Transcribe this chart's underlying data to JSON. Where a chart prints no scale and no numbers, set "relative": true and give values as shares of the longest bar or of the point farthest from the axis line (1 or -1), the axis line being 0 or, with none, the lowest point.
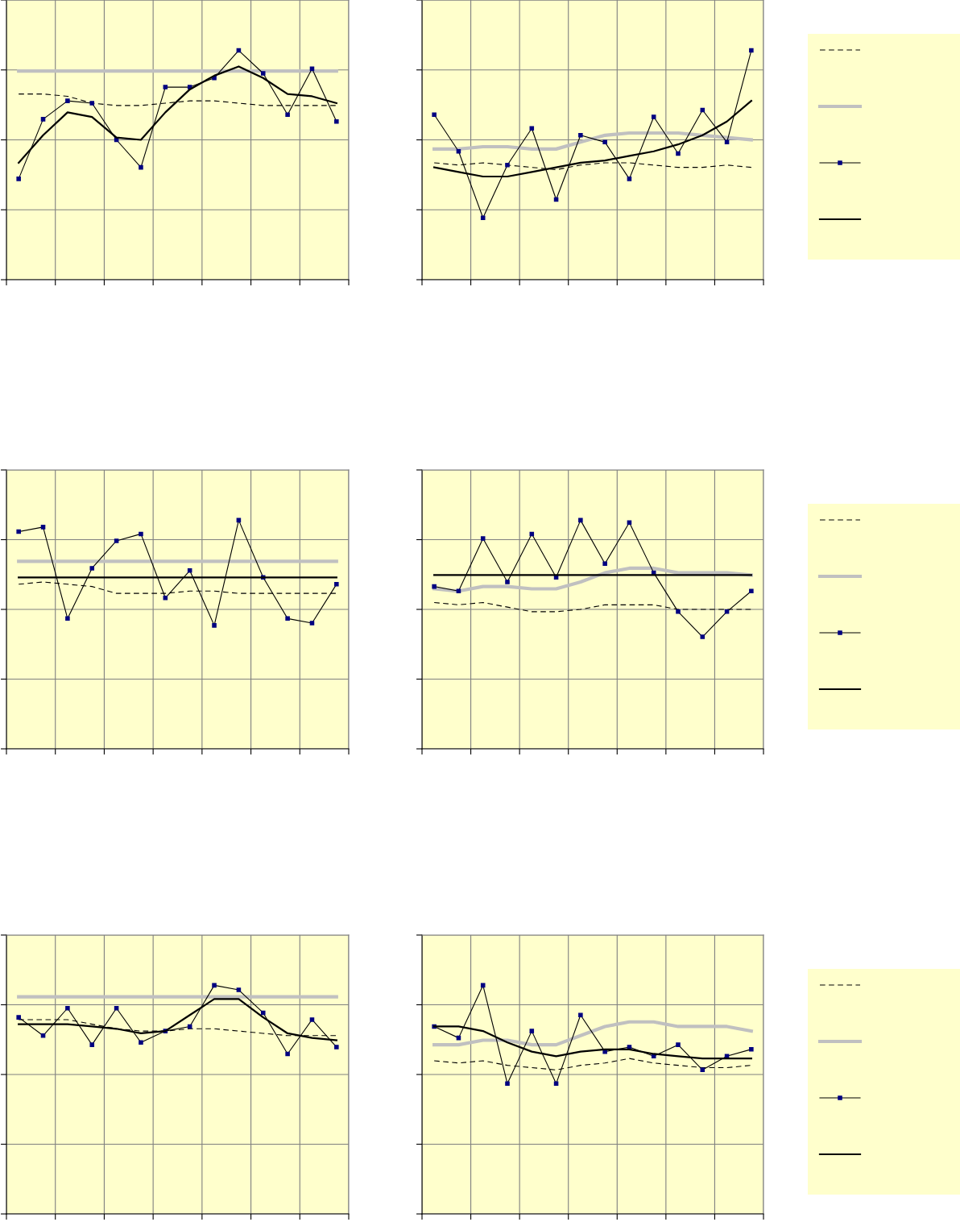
{
  "chart_data": [
    {
      "type": "line",
      "categories": [
        null,
        null,
        null,
        null,
        null,
        null,
        null,
        null,
        null,
        null,
        null,
        null,
        null,
        null
      ],
      "relative": true,
      "grid": true,
      "tick_labels": false,
      "series": [
        {
          "color": "#000000",
          "line_style": "dashed",
          "marker": "none",
          "values": [
            0.81,
            0.81,
            0.8,
            0.77,
            0.76,
            0.76,
            0.77,
            0.78,
            0.78,
            0.77,
            0.76,
            0.76,
            0.76,
            0.76
          ]
        },
        {
          "color": "#c0c0c0",
          "line_style": "solid",
          "marker": "none",
          "values": [
            0.91,
            0.91,
            0.91,
            0.91,
            0.91,
            0.91,
            0.91,
            0.91,
            0.91,
            0.91,
            0.91,
            0.91,
            0.91,
            0.91
          ]
        },
        {
          "color": "#000000",
          "line_style": "solid",
          "marker": "square",
          "values": [
            0.44,
            0.7,
            0.78,
            0.77,
            0.61,
            0.49,
            0.84,
            0.84,
            0.88,
            1.0,
            0.9,
            0.72,
            0.92,
            0.69
          ]
        },
        {
          "color": "#000000",
          "line_style": "solid",
          "marker": "none",
          "values": [
            0.51,
            0.63,
            0.73,
            0.71,
            0.62,
            0.61,
            0.73,
            0.83,
            0.89,
            0.93,
            0.88,
            0.81,
            0.8,
            0.77
          ]
        }
      ]
    },
    {
      "type": "line",
      "categories": [
        null,
        null,
        null,
        null,
        null,
        null,
        null,
        null,
        null,
        null,
        null,
        null,
        null,
        null
      ],
      "relative": true,
      "grid": true,
      "tick_labels": false,
      "series": [
        {
          "color": "#000000",
          "line_style": "dashed",
          "marker": "none",
          "values": [
            0.51,
            0.5,
            0.51,
            0.5,
            0.49,
            0.48,
            0.5,
            0.51,
            0.51,
            0.5,
            0.49,
            0.49,
            0.5,
            0.49
          ]
        },
        {
          "color": "#c0c0c0",
          "line_style": "solid",
          "marker": "none",
          "values": [
            0.57,
            0.57,
            0.58,
            0.58,
            0.57,
            0.57,
            0.6,
            0.63,
            0.64,
            0.64,
            0.64,
            0.63,
            0.62,
            0.61
          ]
        },
        {
          "color": "#000000",
          "line_style": "solid",
          "marker": "square",
          "values": [
            0.72,
            0.56,
            0.27,
            0.5,
            0.66,
            0.35,
            0.63,
            0.6,
            0.44,
            0.71,
            0.55,
            0.74,
            0.6,
            1.0
          ]
        },
        {
          "color": "#000000",
          "line_style": "solid",
          "marker": "none",
          "values": [
            0.49,
            0.47,
            0.45,
            0.45,
            0.47,
            0.49,
            0.51,
            0.52,
            0.54,
            0.56,
            0.59,
            0.63,
            0.69,
            0.78
          ]
        }
      ]
    },
    {
      "type": "line",
      "categories": [
        null,
        null,
        null,
        null,
        null,
        null,
        null,
        null,
        null,
        null,
        null,
        null,
        null,
        null
      ],
      "relative": true,
      "grid": true,
      "tick_labels": false,
      "series": [
        {
          "color": "#000000",
          "line_style": "dashed",
          "marker": "none",
          "values": [
            0.72,
            0.73,
            0.72,
            0.71,
            0.68,
            0.68,
            0.68,
            0.69,
            0.69,
            0.68,
            0.68,
            0.68,
            0.68,
            0.68
          ]
        },
        {
          "color": "#c0c0c0",
          "line_style": "solid",
          "marker": "none",
          "values": [
            0.82,
            0.82,
            0.82,
            0.82,
            0.82,
            0.82,
            0.82,
            0.82,
            0.82,
            0.82,
            0.82,
            0.82,
            0.82,
            0.82
          ]
        },
        {
          "color": "#000000",
          "line_style": "solid",
          "marker": "square",
          "values": [
            0.95,
            0.97,
            0.57,
            0.79,
            0.91,
            0.94,
            0.66,
            0.78,
            0.54,
            1.0,
            0.75,
            0.57,
            0.55,
            0.72
          ]
        },
        {
          "color": "#000000",
          "line_style": "solid",
          "marker": "none",
          "values": [
            0.75,
            0.75,
            0.75,
            0.75,
            0.75,
            0.75,
            0.75,
            0.75,
            0.75,
            0.75,
            0.75,
            0.75,
            0.75,
            0.75
          ]
        }
      ]
    },
    {
      "type": "line",
      "categories": [
        null,
        null,
        null,
        null,
        null,
        null,
        null,
        null,
        null,
        null,
        null,
        null,
        null,
        null
      ],
      "relative": true,
      "grid": true,
      "tick_labels": false,
      "series": [
        {
          "color": "#000000",
          "line_style": "dashed",
          "marker": "none",
          "values": [
            0.64,
            0.63,
            0.64,
            0.62,
            0.6,
            0.6,
            0.61,
            0.63,
            0.63,
            0.63,
            0.61,
            0.61,
            0.61,
            0.61
          ]
        },
        {
          "color": "#c0c0c0",
          "line_style": "solid",
          "marker": "none",
          "values": [
            0.7,
            0.69,
            0.71,
            0.71,
            0.7,
            0.7,
            0.73,
            0.77,
            0.79,
            0.79,
            0.77,
            0.77,
            0.77,
            0.76
          ]
        },
        {
          "color": "#000000",
          "line_style": "solid",
          "marker": "square",
          "values": [
            0.71,
            0.69,
            0.92,
            0.73,
            0.94,
            0.75,
            1.0,
            0.81,
            0.99,
            0.77,
            0.6,
            0.49,
            0.6,
            0.69
          ]
        },
        {
          "color": "#000000",
          "line_style": "solid",
          "marker": "none",
          "values": [
            0.76,
            0.76,
            0.76,
            0.76,
            0.76,
            0.76,
            0.76,
            0.76,
            0.76,
            0.76,
            0.76,
            0.76,
            0.76,
            0.76
          ]
        }
      ]
    },
    {
      "type": "line",
      "categories": [
        null,
        null,
        null,
        null,
        null,
        null,
        null,
        null,
        null,
        null,
        null,
        null,
        null,
        null
      ],
      "relative": true,
      "grid": true,
      "tick_labels": false,
      "series": [
        {
          "color": "#000000",
          "line_style": "dashed",
          "marker": "none",
          "values": [
            0.85,
            0.85,
            0.85,
            0.83,
            0.81,
            0.8,
            0.8,
            0.81,
            0.81,
            0.8,
            0.79,
            0.78,
            0.78,
            0.78
          ]
        },
        {
          "color": "#c0c0c0",
          "line_style": "solid",
          "marker": "none",
          "values": [
            0.95,
            0.95,
            0.95,
            0.95,
            0.95,
            0.95,
            0.95,
            0.95,
            0.95,
            0.95,
            0.95,
            0.95,
            0.95,
            0.95
          ]
        },
        {
          "color": "#000000",
          "line_style": "solid",
          "marker": "square",
          "values": [
            0.86,
            0.78,
            0.9,
            0.74,
            0.9,
            0.75,
            0.8,
            0.82,
            1.0,
            0.98,
            0.88,
            0.7,
            0.85,
            0.73
          ]
        },
        {
          "color": "#000000",
          "line_style": "solid",
          "marker": "none",
          "values": [
            0.83,
            0.83,
            0.83,
            0.82,
            0.81,
            0.79,
            0.8,
            0.87,
            0.94,
            0.94,
            0.86,
            0.79,
            0.77,
            0.76
          ]
        }
      ]
    },
    {
      "type": "line",
      "categories": [
        null,
        null,
        null,
        null,
        null,
        null,
        null,
        null,
        null,
        null,
        null,
        null,
        null,
        null
      ],
      "relative": true,
      "grid": true,
      "tick_labels": false,
      "series": [
        {
          "color": "#000000",
          "line_style": "dashed",
          "marker": "none",
          "values": [
            0.67,
            0.66,
            0.67,
            0.65,
            0.64,
            0.63,
            0.65,
            0.66,
            0.68,
            0.66,
            0.65,
            0.64,
            0.64,
            0.65
          ]
        },
        {
          "color": "#c0c0c0",
          "line_style": "solid",
          "marker": "none",
          "values": [
            0.74,
            0.74,
            0.76,
            0.76,
            0.74,
            0.74,
            0.78,
            0.82,
            0.84,
            0.84,
            0.82,
            0.82,
            0.82,
            0.8
          ]
        },
        {
          "color": "#000000",
          "line_style": "solid",
          "marker": "square",
          "values": [
            0.82,
            0.77,
            1.0,
            0.57,
            0.8,
            0.57,
            0.87,
            0.71,
            0.73,
            0.69,
            0.74,
            0.63,
            0.69,
            0.72
          ]
        },
        {
          "color": "#000000",
          "line_style": "solid",
          "marker": "none",
          "values": [
            0.82,
            0.82,
            0.8,
            0.75,
            0.71,
            0.69,
            0.71,
            0.72,
            0.72,
            0.7,
            0.69,
            0.68,
            0.68,
            0.68
          ]
        }
      ]
    }
  ]
}
